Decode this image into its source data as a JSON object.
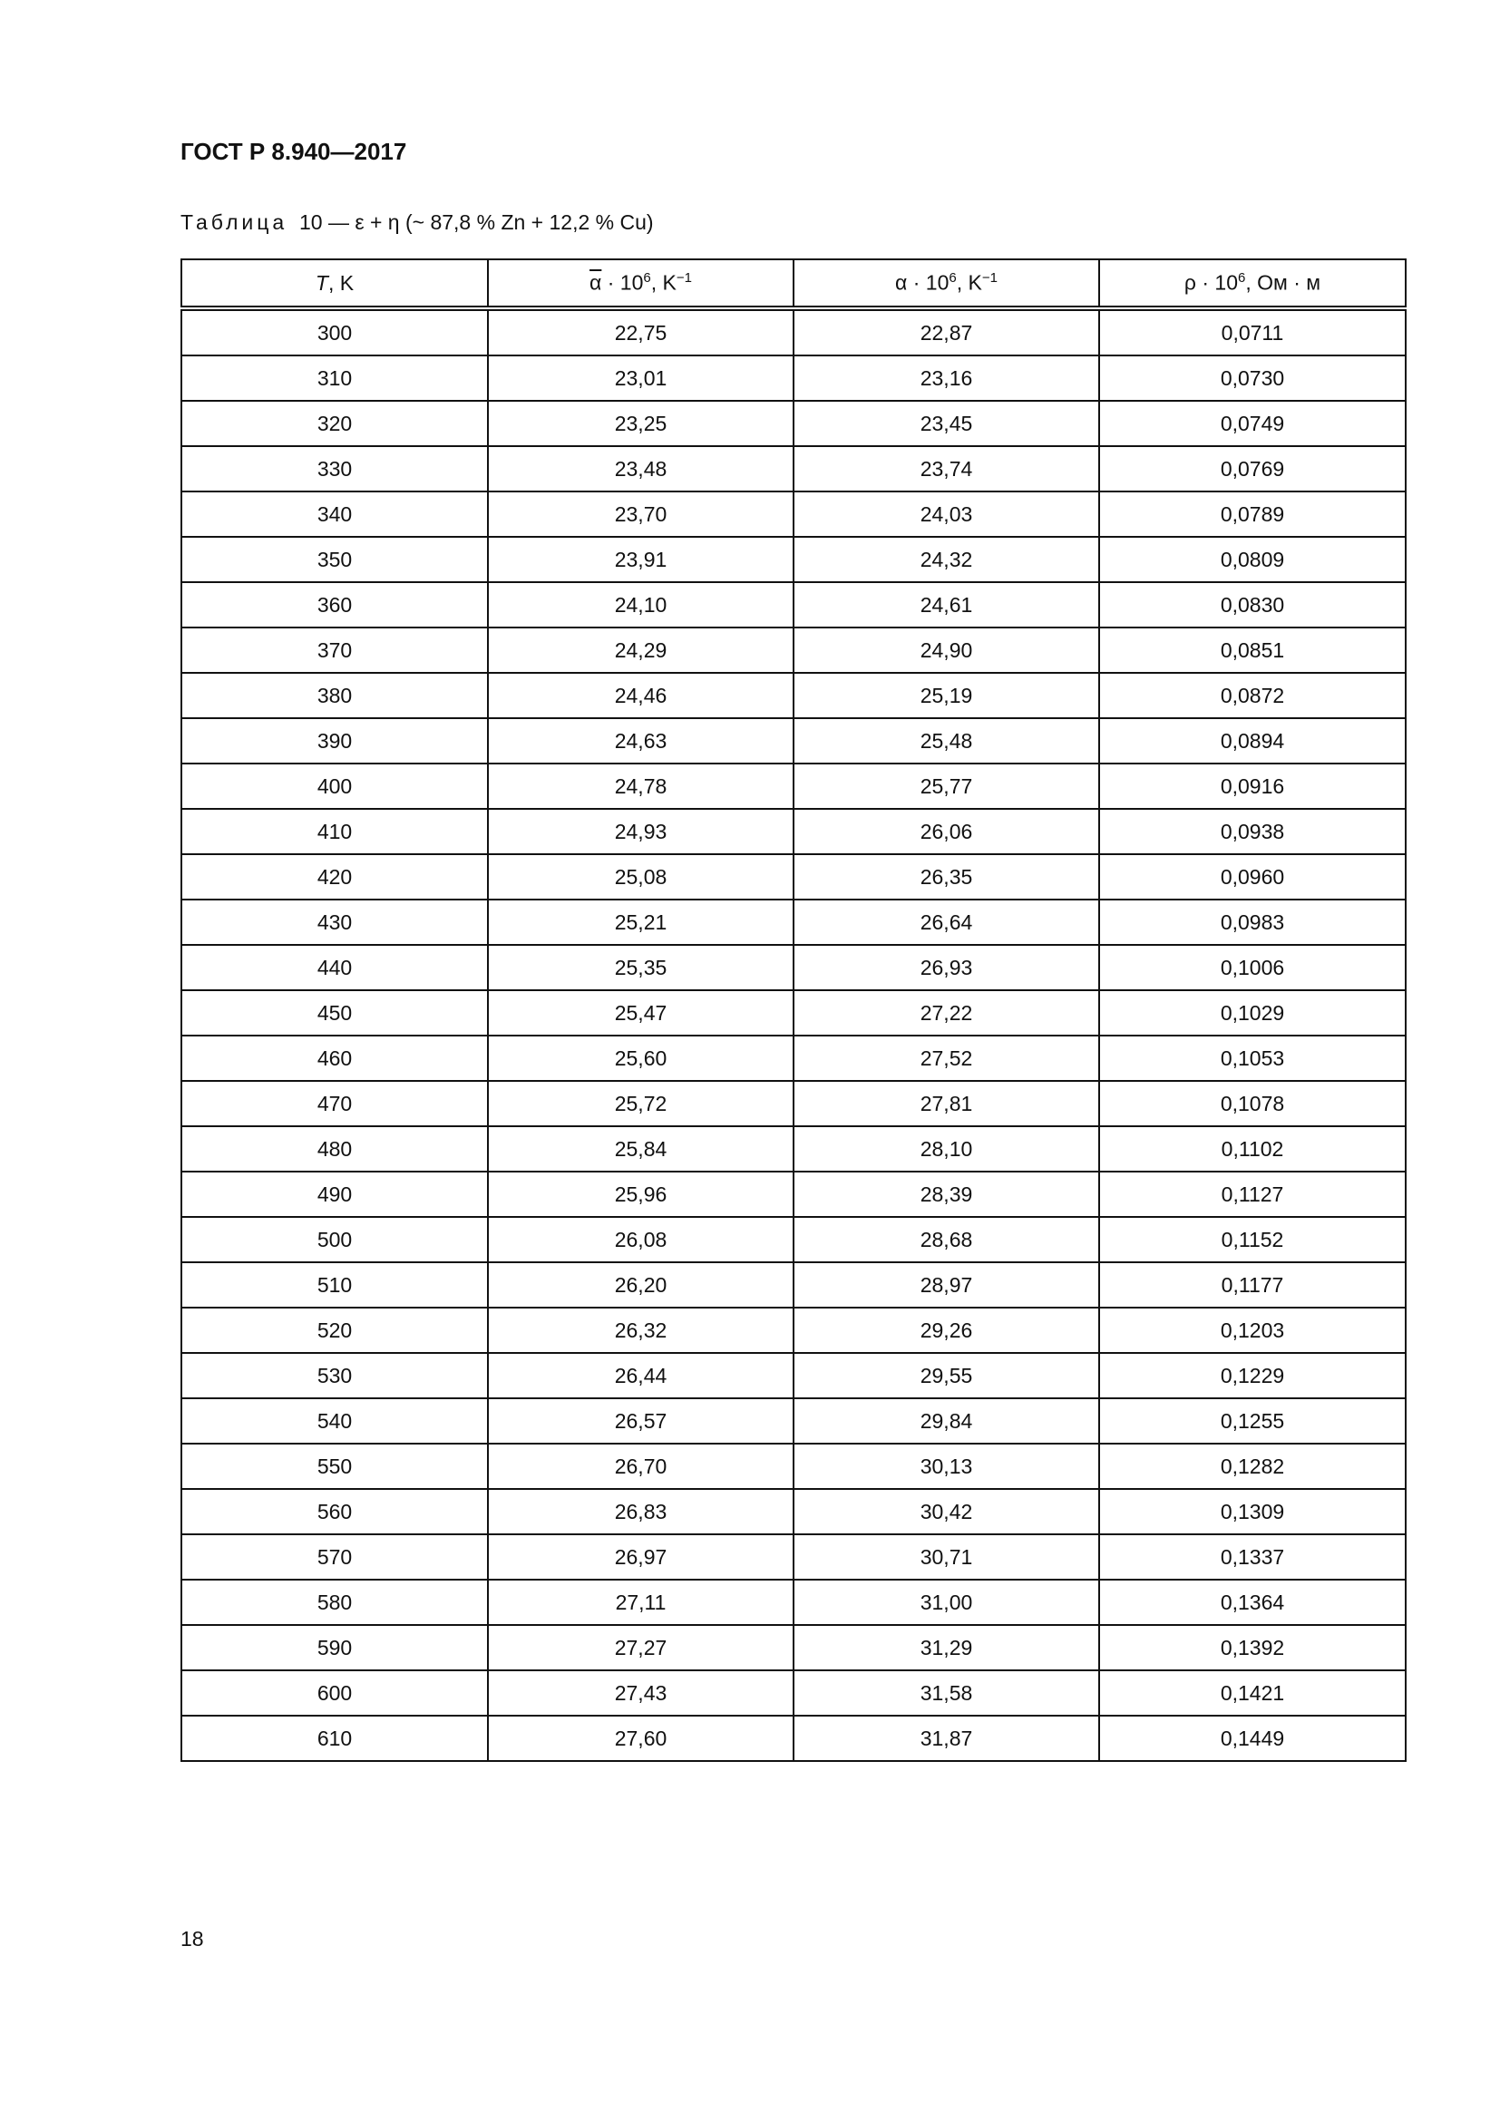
{
  "header": {
    "doc_title": "ГОСТ Р 8.940—2017"
  },
  "caption": {
    "label": "Таблица",
    "text": "10 — ε + η (~ 87,8 % Zn + 12,2 % Cu)"
  },
  "table": {
    "columns": [
      {
        "symbol": "T",
        "unit": ", K"
      },
      {
        "symbol": "α",
        "mult": " · 10",
        "exp": "6",
        "unit": ", K",
        "unit_exp": "−1"
      },
      {
        "symbol": "α",
        "mult": " · 10",
        "exp": "6",
        "unit": ", K",
        "unit_exp": "−1"
      },
      {
        "symbol": "ρ",
        "mult": " · 10",
        "exp": "6",
        "unit": ", Ом · м"
      }
    ],
    "rows": [
      [
        "300",
        "22,75",
        "22,87",
        "0,0711"
      ],
      [
        "310",
        "23,01",
        "23,16",
        "0,0730"
      ],
      [
        "320",
        "23,25",
        "23,45",
        "0,0749"
      ],
      [
        "330",
        "23,48",
        "23,74",
        "0,0769"
      ],
      [
        "340",
        "23,70",
        "24,03",
        "0,0789"
      ],
      [
        "350",
        "23,91",
        "24,32",
        "0,0809"
      ],
      [
        "360",
        "24,10",
        "24,61",
        "0,0830"
      ],
      [
        "370",
        "24,29",
        "24,90",
        "0,0851"
      ],
      [
        "380",
        "24,46",
        "25,19",
        "0,0872"
      ],
      [
        "390",
        "24,63",
        "25,48",
        "0,0894"
      ],
      [
        "400",
        "24,78",
        "25,77",
        "0,0916"
      ],
      [
        "410",
        "24,93",
        "26,06",
        "0,0938"
      ],
      [
        "420",
        "25,08",
        "26,35",
        "0,0960"
      ],
      [
        "430",
        "25,21",
        "26,64",
        "0,0983"
      ],
      [
        "440",
        "25,35",
        "26,93",
        "0,1006"
      ],
      [
        "450",
        "25,47",
        "27,22",
        "0,1029"
      ],
      [
        "460",
        "25,60",
        "27,52",
        "0,1053"
      ],
      [
        "470",
        "25,72",
        "27,81",
        "0,1078"
      ],
      [
        "480",
        "25,84",
        "28,10",
        "0,1102"
      ],
      [
        "490",
        "25,96",
        "28,39",
        "0,1127"
      ],
      [
        "500",
        "26,08",
        "28,68",
        "0,1152"
      ],
      [
        "510",
        "26,20",
        "28,97",
        "0,1177"
      ],
      [
        "520",
        "26,32",
        "29,26",
        "0,1203"
      ],
      [
        "530",
        "26,44",
        "29,55",
        "0,1229"
      ],
      [
        "540",
        "26,57",
        "29,84",
        "0,1255"
      ],
      [
        "550",
        "26,70",
        "30,13",
        "0,1282"
      ],
      [
        "560",
        "26,83",
        "30,42",
        "0,1309"
      ],
      [
        "570",
        "26,97",
        "30,71",
        "0,1337"
      ],
      [
        "580",
        "27,11",
        "31,00",
        "0,1364"
      ],
      [
        "590",
        "27,27",
        "31,29",
        "0,1392"
      ],
      [
        "600",
        "27,43",
        "31,58",
        "0,1421"
      ],
      [
        "610",
        "27,60",
        "31,87",
        "0,1449"
      ]
    ]
  },
  "footer": {
    "page_number": "18"
  }
}
